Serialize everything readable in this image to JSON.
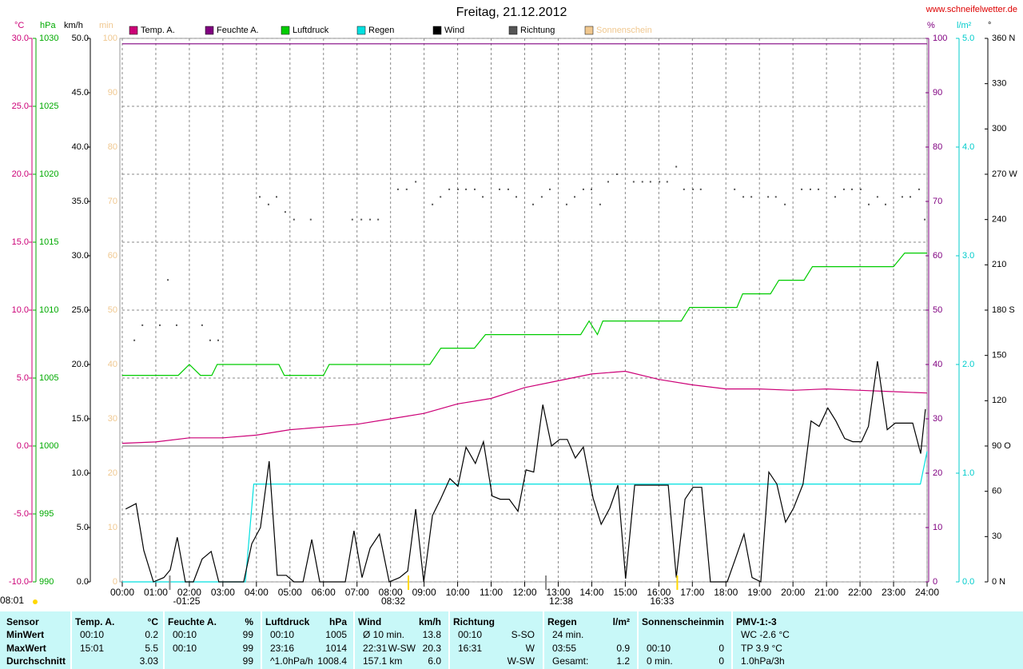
{
  "chart_data": {
    "type": "line",
    "title": "Freitag, 21.12.2012",
    "source": "www.schneifelwetter.de",
    "grid": true,
    "xlim": [
      0,
      24
    ],
    "xticks": [
      {
        "value": 0,
        "label": "00:00"
      },
      {
        "value": 1,
        "label": "01:00"
      },
      {
        "value": 2,
        "label": "02:00"
      },
      {
        "value": 3,
        "label": "03:00"
      },
      {
        "value": 4,
        "label": "04:00"
      },
      {
        "value": 5,
        "label": "05:00"
      },
      {
        "value": 6,
        "label": "06:00"
      },
      {
        "value": 7,
        "label": "07:00"
      },
      {
        "value": 8,
        "label": "08:00"
      },
      {
        "value": 9,
        "label": "09:00"
      },
      {
        "value": 10,
        "label": "10:00"
      },
      {
        "value": 11,
        "label": "11:00"
      },
      {
        "value": 12,
        "label": "12:00"
      },
      {
        "value": 13,
        "label": "13:00"
      },
      {
        "value": 14,
        "label": "14:00"
      },
      {
        "value": 15,
        "label": "15:00"
      },
      {
        "value": 16,
        "label": "16:00"
      },
      {
        "value": 17,
        "label": "17:00"
      },
      {
        "value": 18,
        "label": "18:00"
      },
      {
        "value": 19,
        "label": "19:00"
      },
      {
        "value": 20,
        "label": "20:00"
      },
      {
        "value": 21,
        "label": "21:00"
      },
      {
        "value": 22,
        "label": "22:00"
      },
      {
        "value": 23,
        "label": "23:00"
      },
      {
        "value": 24,
        "label": "24:00"
      }
    ],
    "axes": {
      "temp": {
        "label": "°C",
        "color": "#cc0077",
        "lim": [
          -10,
          30
        ],
        "ticks": [
          {
            "value": -10,
            "label": "-10.0"
          },
          {
            "value": -5,
            "label": "-5.0"
          },
          {
            "value": 0,
            "label": "0.0"
          },
          {
            "value": 5,
            "label": "5.0"
          },
          {
            "value": 10,
            "label": "10.0"
          },
          {
            "value": 15,
            "label": "15.0"
          },
          {
            "value": 20,
            "label": "20.0"
          },
          {
            "value": 25,
            "label": "25.0"
          },
          {
            "value": 30,
            "label": "30.0"
          }
        ]
      },
      "hpa": {
        "label": "hPa",
        "color": "#00aa00",
        "lim": [
          990,
          1030
        ],
        "ticks": [
          990,
          995,
          1000,
          1005,
          1010,
          1015,
          1020,
          1025,
          1030
        ]
      },
      "kmh": {
        "label": "km/h",
        "color": "#000000",
        "lim": [
          0,
          50
        ],
        "ticks": [
          {
            "value": 0,
            "label": "0.0"
          },
          {
            "value": 5,
            "label": "5.0"
          },
          {
            "value": 10,
            "label": "10.0"
          },
          {
            "value": 15,
            "label": "15.0"
          },
          {
            "value": 20,
            "label": "20.0"
          },
          {
            "value": 25,
            "label": "25.0"
          },
          {
            "value": 30,
            "label": "30.0"
          },
          {
            "value": 35,
            "label": "35.0"
          },
          {
            "value": 40,
            "label": "40.0"
          },
          {
            "value": 45,
            "label": "45.0"
          },
          {
            "value": 50,
            "label": "50.0"
          }
        ]
      },
      "min": {
        "label": "min",
        "color": "#f0c890",
        "lim": [
          0,
          100
        ],
        "ticks": [
          0,
          10,
          20,
          30,
          40,
          50,
          60,
          70,
          80,
          90,
          100
        ]
      },
      "pct": {
        "label": "%",
        "color": "#800080",
        "lim": [
          0,
          100
        ],
        "ticks": [
          0,
          10,
          20,
          30,
          40,
          50,
          60,
          70,
          80,
          90,
          100
        ]
      },
      "rain": {
        "label": "l/m²",
        "color": "#00cccc",
        "lim": [
          0,
          5
        ],
        "ticks": [
          {
            "value": 0,
            "label": "0.0"
          },
          {
            "value": 1,
            "label": "1.0"
          },
          {
            "value": 2,
            "label": "2.0"
          },
          {
            "value": 3,
            "label": "3.0"
          },
          {
            "value": 4,
            "label": "4.0"
          },
          {
            "value": 5,
            "label": "5.0"
          }
        ]
      },
      "dir": {
        "label": "°",
        "color": "#000000",
        "lim": [
          0,
          360
        ],
        "ticks": [
          {
            "value": 0,
            "label": "0 N"
          },
          30,
          60,
          {
            "value": 90,
            "label": "90 O"
          },
          120,
          150,
          {
            "value": 180,
            "label": "180 S"
          },
          210,
          240,
          {
            "value": 270,
            "label": "270 W"
          },
          300,
          330,
          {
            "value": 360,
            "label": "360 N"
          }
        ]
      }
    },
    "series": [
      {
        "name": "Temp. A.",
        "color": "#cc0077",
        "axis": "temp",
        "marker": "line",
        "x": [
          0,
          1,
          2,
          3,
          4,
          5,
          6,
          7,
          8,
          9,
          10,
          11,
          12,
          13,
          14,
          15,
          16,
          17,
          18,
          19,
          20,
          21,
          22,
          23,
          24
        ],
        "values": [
          0.2,
          0.3,
          0.6,
          0.6,
          0.8,
          1.2,
          1.4,
          1.6,
          2.0,
          2.4,
          3.1,
          3.5,
          4.3,
          4.8,
          5.3,
          5.5,
          4.9,
          4.5,
          4.2,
          4.2,
          4.1,
          4.2,
          4.1,
          4.0,
          3.9
        ]
      },
      {
        "name": "Feuchte A.",
        "color": "#800080",
        "axis": "pct",
        "marker": "line",
        "x": [
          0,
          24
        ],
        "values": [
          99,
          99
        ]
      },
      {
        "name": "Luftdruck",
        "color": "#00cc00",
        "axis": "hpa",
        "marker": "line",
        "x": [
          0,
          1.67,
          2,
          2.33,
          2.67,
          2.83,
          4.67,
          4.83,
          6,
          6.17,
          9.17,
          9.5,
          10.5,
          10.83,
          13.67,
          13.92,
          14.17,
          14.33,
          16.67,
          16.92,
          18.33,
          18.5,
          19.33,
          19.58,
          20.33,
          20.58,
          23,
          23.33,
          24
        ],
        "values": [
          1005.2,
          1005.2,
          1006.0,
          1005.2,
          1005.2,
          1006.0,
          1006.0,
          1005.2,
          1005.2,
          1006.0,
          1006.0,
          1007.2,
          1007.2,
          1008.2,
          1008.2,
          1009.2,
          1008.2,
          1009.2,
          1009.2,
          1010.2,
          1010.2,
          1011.2,
          1011.2,
          1012.2,
          1012.2,
          1013.2,
          1013.2,
          1014.2,
          1014.2
        ]
      },
      {
        "name": "Regen",
        "color": "#00e0e0",
        "axis": "rain",
        "marker": "line",
        "x": [
          0,
          3.67,
          3.92,
          23.8,
          24
        ],
        "values": [
          0,
          0,
          0.9,
          0.9,
          1.2
        ]
      },
      {
        "name": "Wind",
        "color": "#000000",
        "axis": "kmh",
        "marker": "line",
        "x": [
          0.1,
          0.41,
          0.64,
          0.93,
          1.24,
          1.43,
          1.64,
          1.88,
          2.12,
          2.38,
          2.65,
          2.88,
          3.62,
          3.86,
          4.12,
          4.38,
          4.62,
          4.89,
          5.12,
          5.39,
          5.65,
          5.89,
          6.65,
          6.91,
          7.15,
          7.39,
          7.67,
          7.96,
          8.27,
          8.51,
          8.75,
          8.99,
          9.25,
          9.49,
          9.77,
          10.01,
          10.25,
          10.53,
          10.77,
          11.03,
          11.27,
          11.54,
          11.8,
          12.04,
          12.27,
          12.54,
          12.8,
          13.04,
          13.27,
          13.51,
          13.75,
          14.04,
          14.28,
          14.54,
          14.78,
          15.01,
          15.28,
          16.28,
          16.52,
          16.78,
          17.02,
          17.28,
          17.54,
          18.04,
          18.28,
          18.54,
          18.78,
          19.04,
          19.28,
          19.52,
          19.78,
          20.02,
          20.3,
          20.54,
          20.78,
          21.04,
          21.28,
          21.54,
          21.78,
          22.04,
          22.25,
          22.52,
          22.81,
          23.05,
          23.28,
          23.57,
          23.81,
          23.95
        ],
        "values": [
          6.7,
          7.2,
          2.9,
          0,
          0.4,
          1.1,
          4.1,
          0,
          0,
          2.1,
          2.8,
          0,
          0,
          3.5,
          5.0,
          11.1,
          0.6,
          0.6,
          0,
          0,
          3.9,
          0,
          0,
          4.7,
          0.4,
          3.1,
          4.4,
          0,
          0.4,
          1.0,
          6.7,
          0,
          6.1,
          7.6,
          9.5,
          8.8,
          12.4,
          10.9,
          12.9,
          7.9,
          7.6,
          7.6,
          6.5,
          10.3,
          10.1,
          16.3,
          12.5,
          13.1,
          13.1,
          11.4,
          12.4,
          7.7,
          5.3,
          6.8,
          8.9,
          0.3,
          8.9,
          8.9,
          0.4,
          7.6,
          8.7,
          8.7,
          0,
          0,
          2.1,
          4.4,
          0.4,
          0,
          10.1,
          9.0,
          5.5,
          6.8,
          9.0,
          14.8,
          14.3,
          16.0,
          14.8,
          13.2,
          12.9,
          12.9,
          14.3,
          20.3,
          14.0,
          14.6,
          14.6,
          14.6,
          11.8,
          15.9
        ]
      },
      {
        "name": "Richtung",
        "color": "#555555",
        "axis": "dir",
        "marker": "dot",
        "x": [
          0.36,
          0.6,
          1.12,
          1.36,
          1.62,
          2.38,
          2.62,
          2.86,
          4.1,
          4.36,
          4.6,
          4.86,
          5.12,
          5.62,
          6.86,
          7.13,
          7.39,
          7.63,
          8.22,
          8.48,
          8.75,
          9.25,
          9.49,
          9.75,
          10.01,
          10.25,
          10.51,
          10.75,
          11.25,
          11.51,
          11.75,
          12.25,
          12.51,
          12.75,
          13.25,
          13.49,
          13.75,
          13.99,
          14.25,
          14.49,
          14.75,
          15.25,
          15.51,
          15.75,
          16.02,
          16.25,
          16.52,
          16.75,
          17.02,
          17.25,
          18.26,
          18.52,
          18.76,
          19.26,
          19.49,
          19.76,
          20.26,
          20.52,
          20.76,
          21.26,
          21.52,
          21.76,
          22.02,
          22.26,
          22.52,
          22.76,
          23.26,
          23.5,
          23.76,
          23.93
        ],
        "values": [
          160,
          170,
          170,
          200,
          170,
          170,
          160,
          160,
          255,
          250,
          255,
          245,
          240,
          240,
          240,
          240,
          240,
          240,
          260,
          260,
          265,
          250,
          255,
          260,
          260,
          260,
          260,
          255,
          260,
          260,
          255,
          250,
          255,
          260,
          250,
          255,
          260,
          260,
          250,
          265,
          270,
          265,
          265,
          265,
          265,
          265,
          275,
          260,
          260,
          260,
          260,
          255,
          255,
          255,
          255,
          250,
          260,
          260,
          260,
          255,
          260,
          260,
          260,
          250,
          255,
          250,
          255,
          255,
          260,
          240
        ]
      },
      {
        "name": "Sonnenschein",
        "color": "#f0c890",
        "axis": "min",
        "marker": "line",
        "x": [],
        "values": []
      }
    ],
    "annotations": [
      {
        "label": "-01:25",
        "x": 1.417,
        "kind": "moon"
      },
      {
        "label": "08:32",
        "x": 8.533,
        "kind": "sun"
      },
      {
        "label": "12:38",
        "x": 12.633,
        "kind": "moon"
      },
      {
        "label": "16:33",
        "x": 16.55,
        "kind": "sun"
      }
    ],
    "day_length": "08:01"
  },
  "table": {
    "columns": [
      {
        "header": "Sensor",
        "rows": [
          {
            "left": "MinWert"
          },
          {
            "left": "MaxWert"
          },
          {
            "left": "Durchschnitt"
          }
        ]
      },
      {
        "header": "Temp. A.",
        "unit": "°C",
        "rows": [
          {
            "left": "00:10",
            "right": "0.2"
          },
          {
            "left": "15:01",
            "right": "5.5"
          },
          {
            "right": "3.03"
          }
        ]
      },
      {
        "header": "Feuchte A.",
        "unit": "%",
        "rows": [
          {
            "left": "00:10",
            "right": "99"
          },
          {
            "left": "00:10",
            "right": "99"
          },
          {
            "right": "99"
          }
        ]
      },
      {
        "header": "Luftdruck",
        "unit": "hPa",
        "rows": [
          {
            "left": "00:10",
            "right": "1005"
          },
          {
            "left": "23:16",
            "right": "1014"
          },
          {
            "left": "^1.0hPa/h",
            "right": "1008.4"
          }
        ]
      },
      {
        "header": "Wind",
        "unit": "km/h",
        "rows": [
          {
            "left": "Ø 10 min.",
            "right": "13.8"
          },
          {
            "left": "22:31",
            "middle": "W-SW",
            "right": "20.3"
          },
          {
            "left": "157.1 km",
            "right": "6.0"
          }
        ]
      },
      {
        "header": "Richtung",
        "rows": [
          {
            "left": "00:10",
            "right": "S-SO"
          },
          {
            "left": "16:31",
            "right": "W"
          },
          {
            "right": "W-SW"
          }
        ]
      },
      {
        "header": "Regen",
        "unit": "l/m²",
        "rows": [
          {
            "left": "24 min."
          },
          {
            "left": "03:55",
            "right": "0.9"
          },
          {
            "left": "Gesamt:",
            "right": "1.2"
          }
        ]
      },
      {
        "header": "Sonnenschein",
        "unit": "min",
        "rows": [
          {},
          {
            "left": "00:10",
            "right": "0"
          },
          {
            "left": "0 min.",
            "right": "0"
          }
        ]
      },
      {
        "header": "PMV-1:-3",
        "rows": [
          {
            "left": "WC -2.6 °C"
          },
          {
            "left": "TP 3.9 °C"
          },
          {
            "left": "1.0hPa/3h"
          }
        ]
      }
    ]
  }
}
